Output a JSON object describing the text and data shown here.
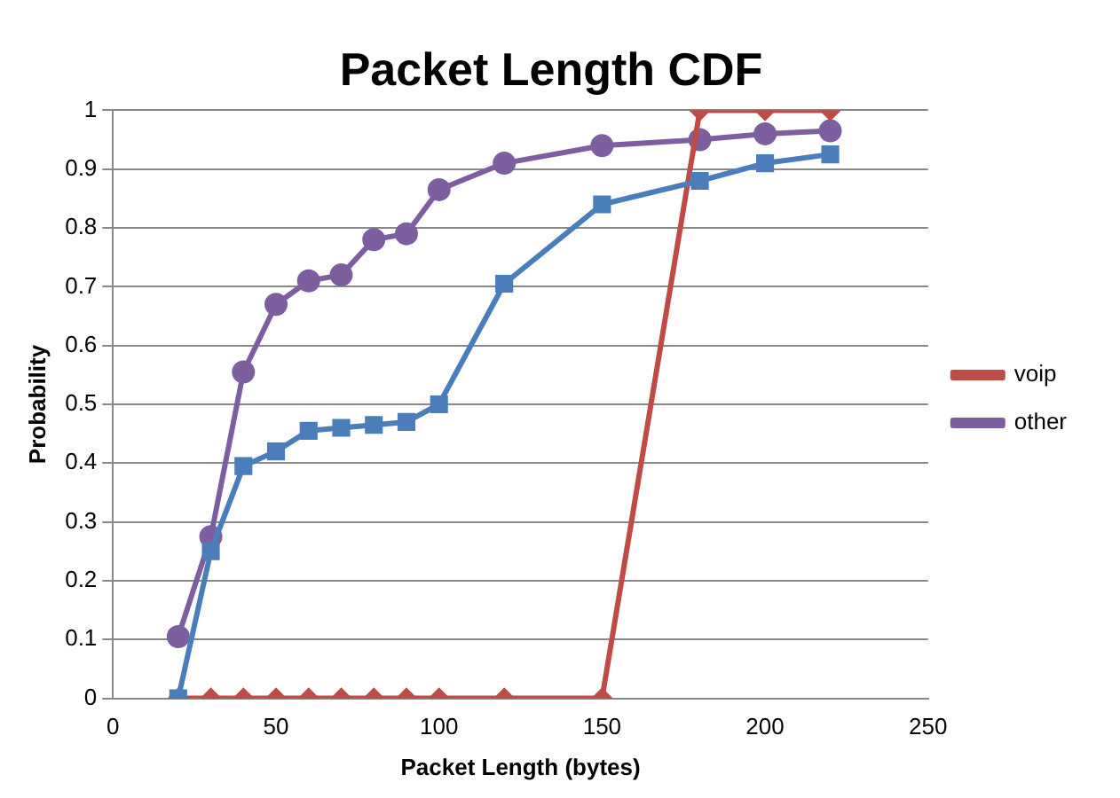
{
  "chart_data": {
    "type": "line",
    "title": "Packet Length CDF",
    "xlabel": "Packet Length (bytes)",
    "ylabel": "Probability",
    "x": [
      20,
      30,
      40,
      50,
      60,
      70,
      80,
      90,
      100,
      120,
      150,
      180,
      200,
      220
    ],
    "series": [
      {
        "color": "#4a7ebb",
        "marker": "square",
        "values": [
          0,
          0.25,
          0.395,
          0.42,
          0.455,
          0.46,
          0.465,
          0.47,
          0.5,
          0.705,
          0.84,
          0.88,
          0.91,
          0.925
        ]
      },
      {
        "name": "voip",
        "color": "#be4b48",
        "marker": "diamond",
        "values": [
          0,
          0,
          0,
          0,
          0,
          0,
          0,
          0,
          0,
          0,
          0,
          1,
          1,
          1
        ]
      },
      {
        "name": "other",
        "color": "#7d5fa0",
        "marker": "circle",
        "values": [
          0.105,
          0.275,
          0.555,
          0.67,
          0.71,
          0.72,
          0.78,
          0.79,
          0.865,
          0.91,
          0.94,
          0.95,
          0.96,
          0.965
        ]
      }
    ],
    "xlim": [
      0,
      250
    ],
    "xticks": [
      0,
      50,
      100,
      150,
      200,
      250
    ],
    "ylim": [
      0,
      1
    ],
    "yticks": [
      0,
      0.1,
      0.2,
      0.3,
      0.4,
      0.5,
      0.6,
      0.7,
      0.8,
      0.9,
      1
    ],
    "grid": "y",
    "legend": "right"
  }
}
